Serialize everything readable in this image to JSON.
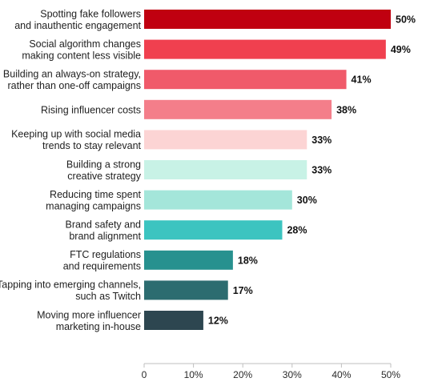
{
  "chart_data": {
    "type": "bar",
    "orientation": "horizontal",
    "categories": [
      [
        "Spotting fake followers",
        "and inauthentic engagement"
      ],
      [
        "Social algorithm changes",
        "making content less visible"
      ],
      [
        "Building an always-on strategy,",
        "rather than one-off campaigns"
      ],
      [
        "Rising influencer costs"
      ],
      [
        "Keeping up with social media",
        "trends to stay relevant"
      ],
      [
        "Building a strong",
        "creative strategy"
      ],
      [
        "Reducing time spent",
        "managing campaigns"
      ],
      [
        "Brand safety and",
        "brand alignment"
      ],
      [
        "FTC regulations",
        "and requirements"
      ],
      [
        "Tapping into emerging channels,",
        "such as Twitch"
      ],
      [
        "Moving more influencer",
        "marketing in-house"
      ]
    ],
    "values": [
      50,
      49,
      41,
      38,
      33,
      33,
      30,
      28,
      18,
      17,
      12
    ],
    "value_labels": [
      "50%",
      "49%",
      "41%",
      "38%",
      "33%",
      "33%",
      "30%",
      "28%",
      "18%",
      "17%",
      "12%"
    ],
    "bar_colors": [
      "#c00010",
      "#f0404f",
      "#f05a6a",
      "#f47e8a",
      "#fcd4d4",
      "#c8f2e6",
      "#a4e6da",
      "#3cc4c0",
      "#27918f",
      "#2c6c70",
      "#2d4650"
    ],
    "xlim": [
      0,
      50
    ],
    "xticks": [
      0,
      10,
      20,
      30,
      40,
      50
    ],
    "xtick_labels": [
      "0",
      "10%",
      "20%",
      "30%",
      "40%",
      "50%"
    ],
    "title": "",
    "xlabel": "",
    "ylabel": "",
    "grid": false,
    "legend": "none"
  }
}
